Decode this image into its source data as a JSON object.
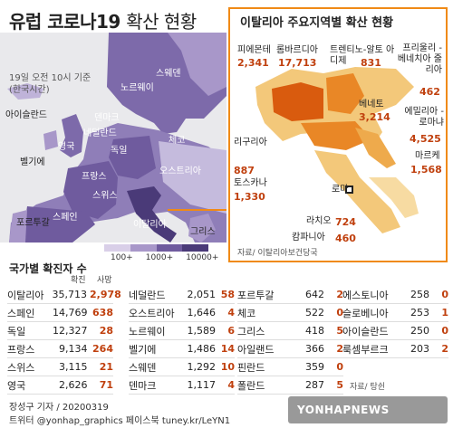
{
  "title": {
    "main": "유럽 코로나19",
    "sub": "확산 현황"
  },
  "date_note": [
    "19일 오전 10시 기준",
    "(한국시간)"
  ],
  "map_labels": [
    {
      "text": "아이슬란드",
      "dark": true
    },
    {
      "text": "스웨덴"
    },
    {
      "text": "노르웨이"
    },
    {
      "text": "덴마크"
    },
    {
      "text": "네덜란드"
    },
    {
      "text": "영국"
    },
    {
      "text": "독일"
    },
    {
      "text": "벨기에",
      "dark": true
    },
    {
      "text": "체코"
    },
    {
      "text": "프랑스"
    },
    {
      "text": "오스트리아"
    },
    {
      "text": "스위스"
    },
    {
      "text": "포르투갈",
      "dark": true
    },
    {
      "text": "스페인"
    },
    {
      "text": "이탈리아"
    },
    {
      "text": "그리스",
      "dark": true
    }
  ],
  "legend": {
    "labels": [
      "100+",
      "1000+",
      "10000+"
    ],
    "colors": [
      "#d9cfe8",
      "#a897c9",
      "#6f5b9e",
      "#4a3a78"
    ]
  },
  "inset": {
    "title": "이탈리아 주요지역별 확산 현황",
    "source": "자료/ 이탈리아보건당국",
    "regions": [
      {
        "name": "피에몬테",
        "value": "2,341"
      },
      {
        "name": "롬바르디아",
        "value": "17,713"
      },
      {
        "name": "트렌티노-알토 아디제",
        "value": "831"
      },
      {
        "name": "프리울리 -베네치아 줄리아",
        "value": "462"
      },
      {
        "name": "베네토",
        "value": "3,214"
      },
      {
        "name": "에밀리아 -로마냐",
        "value": "4,525"
      },
      {
        "name": "리구리아",
        "value": "887"
      },
      {
        "name": "마르케",
        "value": "1,568"
      },
      {
        "name": "토스카나",
        "value": "1,330"
      },
      {
        "name": "로마",
        "value": ""
      },
      {
        "name": "라치오",
        "value": "724"
      },
      {
        "name": "캄파니아",
        "value": "460"
      }
    ]
  },
  "table": {
    "title": "국가별 확진자 수",
    "col_confirmed": "확진",
    "col_deaths": "사망",
    "columns": [
      [
        {
          "country": "이탈리아",
          "confirmed": "35,713",
          "deaths": "2,978"
        },
        {
          "country": "스페인",
          "confirmed": "14,769",
          "deaths": "638"
        },
        {
          "country": "독일",
          "confirmed": "12,327",
          "deaths": "28"
        },
        {
          "country": "프랑스",
          "confirmed": "9,134",
          "deaths": "264"
        },
        {
          "country": "스위스",
          "confirmed": "3,115",
          "deaths": "21"
        },
        {
          "country": "영국",
          "confirmed": "2,626",
          "deaths": "71"
        }
      ],
      [
        {
          "country": "네덜란드",
          "confirmed": "2,051",
          "deaths": "58"
        },
        {
          "country": "오스트리아",
          "confirmed": "1,646",
          "deaths": "4"
        },
        {
          "country": "노르웨이",
          "confirmed": "1,589",
          "deaths": "6"
        },
        {
          "country": "벨기에",
          "confirmed": "1,486",
          "deaths": "14"
        },
        {
          "country": "스웨덴",
          "confirmed": "1,292",
          "deaths": "10"
        },
        {
          "country": "덴마크",
          "confirmed": "1,117",
          "deaths": "4"
        }
      ],
      [
        {
          "country": "포르투갈",
          "confirmed": "642",
          "deaths": "2"
        },
        {
          "country": "체코",
          "confirmed": "522",
          "deaths": "0"
        },
        {
          "country": "그리스",
          "confirmed": "418",
          "deaths": "5"
        },
        {
          "country": "아일랜드",
          "confirmed": "366",
          "deaths": "2"
        },
        {
          "country": "핀란드",
          "confirmed": "359",
          "deaths": "0"
        },
        {
          "country": "폴란드",
          "confirmed": "287",
          "deaths": "5"
        }
      ],
      [
        {
          "country": "에스토니아",
          "confirmed": "258",
          "deaths": "0"
        },
        {
          "country": "슬로베니아",
          "confirmed": "253",
          "deaths": "1"
        },
        {
          "country": "아이슬란드",
          "confirmed": "250",
          "deaths": "0"
        },
        {
          "country": "룩셈부르크",
          "confirmed": "203",
          "deaths": "2"
        }
      ]
    ]
  },
  "source": "자료/ 탕쉰",
  "footer": {
    "author": "장성구 기자 / 20200319",
    "social": "트위터 @yonhap_graphics  페이스북 tuney.kr/LeYN1"
  },
  "logo": {
    "text": "YONHAPNEWS",
    "brand": "연합뉴스"
  }
}
